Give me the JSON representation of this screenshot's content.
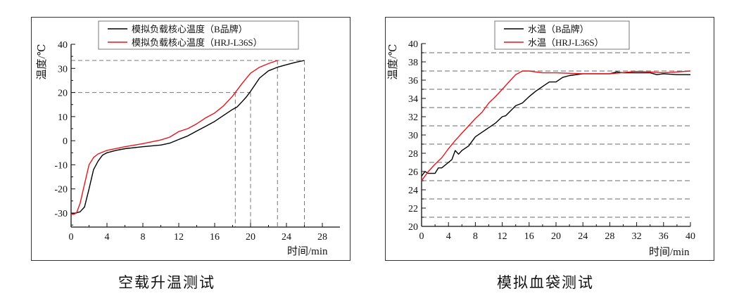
{
  "chart_data": [
    {
      "type": "line",
      "caption": "空载升温测试",
      "xlabel": "时间/min",
      "ylabel": "温度/℃",
      "xlim": [
        0,
        29.5
      ],
      "ylim": [
        -36,
        40
      ],
      "xticks": [
        0,
        4,
        8,
        12,
        16,
        20,
        24,
        28
      ],
      "yticks": [
        -30,
        -20,
        -10,
        0,
        10,
        20,
        30,
        40
      ],
      "xtick_labels": [
        "0",
        "4",
        "8",
        "12",
        "16",
        "20",
        "24",
        "28"
      ],
      "ytick_labels": [
        "-30",
        "-20",
        "-10",
        "0",
        "10",
        "20",
        "30",
        "40"
      ],
      "grid": false,
      "legend_position": "top-center",
      "reference_lines": {
        "horizontal": [
          {
            "y": 33.3,
            "x_to": 26
          },
          {
            "y": 20,
            "x_to": 20
          }
        ],
        "vertical": [
          {
            "x": 18.3,
            "y_to": 20
          },
          {
            "x": 20,
            "y_to": 20
          },
          {
            "x": 23,
            "y_to": 33.3
          },
          {
            "x": 26,
            "y_to": 33.3
          }
        ]
      },
      "series": [
        {
          "name": "模拟负载核心温度（B品牌）",
          "color": "#000000",
          "x": [
            0,
            0.5,
            1,
            1.5,
            2,
            2.5,
            3,
            3.5,
            4,
            5,
            6,
            8,
            10,
            11,
            12,
            13,
            14,
            15,
            16,
            17,
            18,
            18.5,
            19,
            19.5,
            20,
            21,
            22,
            23,
            24,
            25,
            26
          ],
          "y": [
            -30.5,
            -30,
            -29.5,
            -27.5,
            -20,
            -12,
            -8.5,
            -6,
            -5,
            -4,
            -3.3,
            -2.5,
            -1.8,
            -1,
            0.5,
            2,
            4,
            6,
            8,
            10.5,
            13,
            14,
            16,
            18,
            20.5,
            26,
            29,
            30.5,
            31.5,
            32.5,
            33.3
          ]
        },
        {
          "name": "模拟负载核心温度（HRJ-L36S）",
          "color": "#e8141b",
          "x": [
            0,
            0.3,
            0.6,
            1,
            1.5,
            2,
            2.5,
            3,
            4,
            6,
            8,
            10,
            11,
            12,
            13,
            14,
            15,
            16,
            17,
            18,
            18.3,
            19,
            20,
            21,
            22,
            23
          ],
          "y": [
            -30.5,
            -30.5,
            -30,
            -26,
            -18,
            -10,
            -7,
            -5.5,
            -4,
            -2.5,
            -1.2,
            0.3,
            1.5,
            3.8,
            5,
            7,
            9.5,
            11.5,
            14.5,
            18.5,
            20,
            23.5,
            28,
            30.5,
            32,
            33.3
          ]
        }
      ]
    },
    {
      "type": "line",
      "caption": "模拟血袋测试",
      "xlabel": "时间/min",
      "ylabel": "温度/℃",
      "xlim": [
        0,
        40
      ],
      "ylim": [
        20,
        40
      ],
      "xticks": [
        0,
        4,
        8,
        12,
        16,
        20,
        24,
        28,
        32,
        36,
        40
      ],
      "yticks": [
        20,
        22,
        24,
        26,
        28,
        30,
        32,
        34,
        36,
        38,
        40
      ],
      "xtick_labels": [
        "0",
        "4",
        "8",
        "12",
        "16",
        "20",
        "24",
        "28",
        "32",
        "36",
        "40"
      ],
      "ytick_labels": [
        "20",
        "22",
        "24",
        "26",
        "28",
        "30",
        "32",
        "34",
        "36",
        "38",
        "40"
      ],
      "grid": true,
      "grid_lines_y": [
        21,
        23,
        25,
        27,
        29,
        31,
        33,
        35,
        37,
        39
      ],
      "legend_position": "top-center",
      "series": [
        {
          "name": "水温（B品牌）",
          "color": "#000000",
          "x": [
            0,
            0.5,
            1,
            2,
            2.5,
            3,
            4,
            4.5,
            5,
            5.5,
            6,
            7,
            8,
            10,
            11,
            12,
            12.5,
            14,
            15,
            16,
            17,
            18,
            19,
            20,
            21,
            22,
            24,
            26,
            28,
            29,
            30,
            34,
            35,
            36,
            38,
            40
          ],
          "y": [
            25.5,
            26,
            25.8,
            25.8,
            26.4,
            26.4,
            27,
            27.3,
            28.3,
            27.9,
            28.3,
            28.8,
            29.8,
            30.8,
            31.3,
            32,
            32.1,
            33.2,
            33.5,
            34.2,
            34.8,
            35.3,
            35.8,
            35.8,
            36.3,
            36.5,
            36.7,
            36.7,
            36.7,
            36.9,
            36.8,
            36.8,
            36.6,
            36.7,
            36.6,
            36.6
          ]
        },
        {
          "name": "水温（HRJ-L36S）",
          "color": "#e8141b",
          "x": [
            0,
            1,
            2,
            3,
            4,
            5,
            6,
            7,
            8,
            9,
            10,
            11,
            12,
            13,
            14,
            15,
            16,
            18,
            20,
            24,
            28,
            32,
            34,
            36,
            38,
            40
          ],
          "y": [
            25,
            26,
            26.8,
            27.5,
            28.5,
            29.4,
            30.2,
            31,
            31.8,
            32.5,
            33.5,
            34.2,
            35,
            35.8,
            36.6,
            37,
            37,
            36.8,
            36.8,
            36.7,
            36.7,
            36.95,
            36.9,
            36.8,
            36.9,
            37
          ]
        }
      ]
    }
  ]
}
